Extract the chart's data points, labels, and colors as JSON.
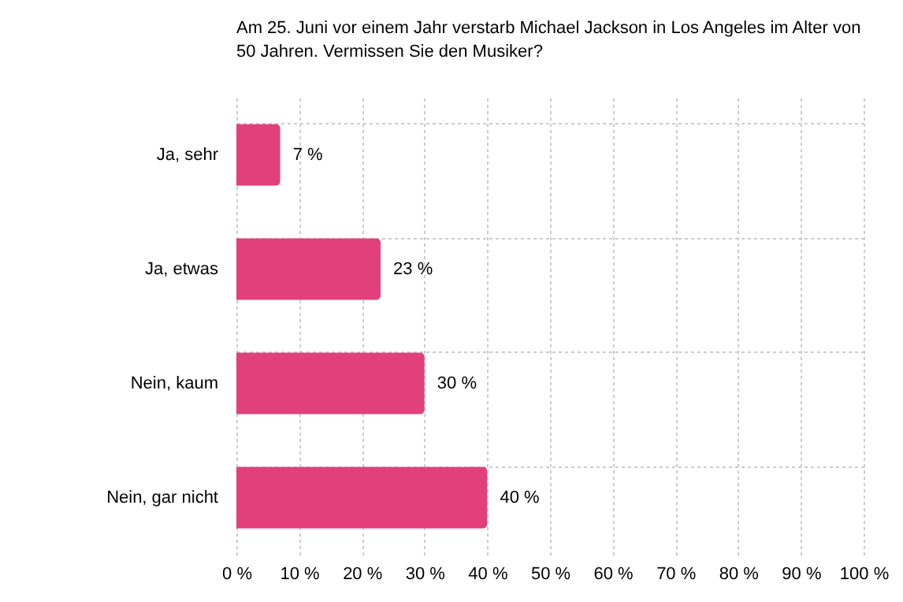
{
  "chart_data": {
    "type": "bar",
    "orientation": "horizontal",
    "title": "Am 25. Juni vor einem Jahr verstarb Michael Jackson in Los Angeles im Alter von 50 Jahren. Vermissen Sie den Musiker?",
    "categories": [
      "Ja, sehr",
      "Ja, etwas",
      "Nein, kaum",
      "Nein, gar nicht"
    ],
    "values": [
      7,
      23,
      30,
      40
    ],
    "value_labels": [
      "7 %",
      "23 %",
      "30 %",
      "40 %"
    ],
    "color": "#e2407a",
    "xlim": [
      0,
      100
    ],
    "xticks": [
      {
        "value": 0,
        "label": "0 %"
      },
      {
        "value": 10,
        "label": "10 %"
      },
      {
        "value": 20,
        "label": "20 %"
      },
      {
        "value": 30,
        "label": "30 %"
      },
      {
        "value": 40,
        "label": "40 %"
      },
      {
        "value": 50,
        "label": "50 %"
      },
      {
        "value": 60,
        "label": "60 %"
      },
      {
        "value": 70,
        "label": "70 %"
      },
      {
        "value": 80,
        "label": "80 %"
      },
      {
        "value": 90,
        "label": "90 %"
      },
      {
        "value": 100,
        "label": "100 %"
      }
    ],
    "grid": true
  }
}
